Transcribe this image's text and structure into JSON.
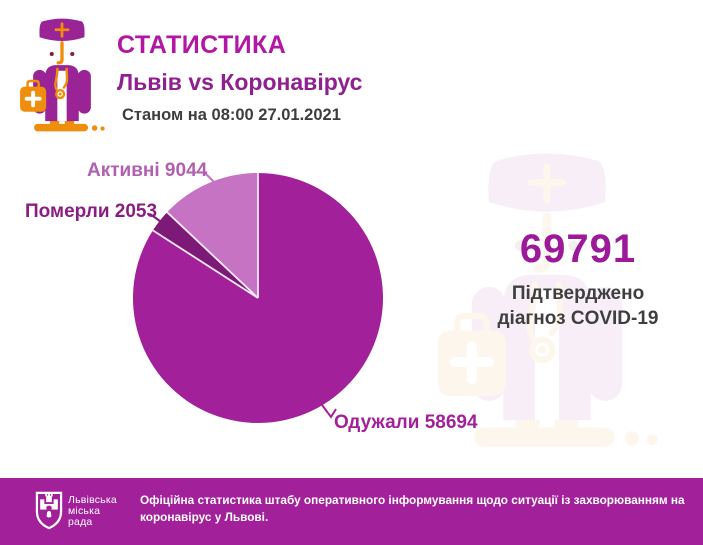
{
  "header": {
    "title": "СТАТИСТИКА",
    "subtitle": "Львів vs Коронавірус",
    "as_of": "Станом на 08:00 27.01.2021"
  },
  "chart_data": {
    "type": "pie",
    "total": 69791,
    "direction": "clockwise",
    "start_angle_deg": 0,
    "slices": [
      {
        "key": "recovered",
        "label": "Одужали",
        "value": 58694,
        "display": "Одужали 58694",
        "color": "#a2219b"
      },
      {
        "key": "deaths",
        "label": "Померли",
        "value": 2053,
        "display": "Померли 2053",
        "color": "#7d1a78"
      },
      {
        "key": "active",
        "label": "Активні",
        "value": 9044,
        "display": "Активні 9044",
        "color": "#c673c4"
      }
    ]
  },
  "confirmed": {
    "number": "69791",
    "caption_line1": "Підтверджено",
    "caption_line2": "діагноз COVID-19"
  },
  "footer": {
    "org_line1": "Львівська",
    "org_line2": "міська",
    "org_line3": "рада",
    "text_line1": "Офіційна статистика штабу оперативного інформування щодо ситуації із захворюванням на",
    "text_line2": "коронавірус у Львові."
  },
  "icons": {
    "doctor": "doctor-with-first-aid-kit-icon",
    "coat_of_arms": "lviv-city-council-emblem"
  },
  "colors": {
    "accent_magenta": "#a2219b",
    "title": "#b117a3",
    "subtitle": "#8f2090",
    "pie_recovered": "#a2219b",
    "pie_deaths": "#7d1a78",
    "pie_active": "#c673c4",
    "separator_line": "#f7ecf7",
    "footer_bg": "#a2219b",
    "doctor_purple": "#9a2396",
    "doctor_orange": "#ef8d0c",
    "text_dark": "#3d3d3d",
    "footer_text": "#ffffff"
  }
}
